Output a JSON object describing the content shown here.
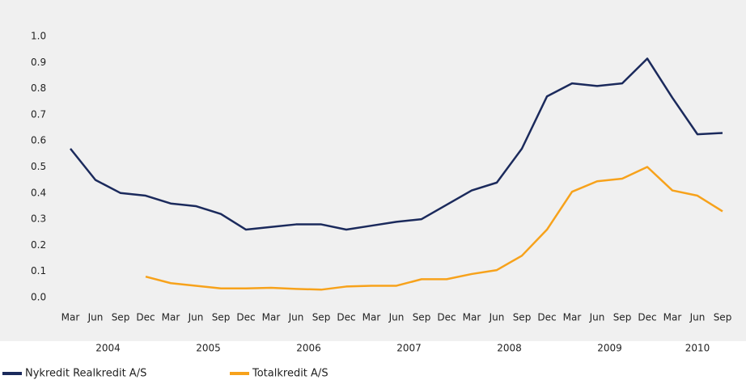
{
  "chart_data": {
    "type": "line",
    "categories": [
      "Mar",
      "Jun",
      "Sep",
      "Dec",
      "Mar",
      "Jun",
      "Sep",
      "Dec",
      "Mar",
      "Jun",
      "Sep",
      "Dec",
      "Mar",
      "Jun",
      "Sep",
      "Dec",
      "Mar",
      "Jun",
      "Sep",
      "Dec",
      "Mar",
      "Jun",
      "Sep",
      "Dec",
      "Mar",
      "Jun",
      "Sep"
    ],
    "years": [
      "2004",
      "2005",
      "2006",
      "2007",
      "2008",
      "2009",
      "2010"
    ],
    "series": [
      {
        "name": "Nykredit Realkredit A/S",
        "color": "#1b2a5c",
        "values": [
          0.57,
          0.45,
          0.4,
          0.39,
          0.36,
          0.35,
          0.32,
          0.26,
          0.27,
          0.28,
          0.28,
          0.26,
          0.275,
          0.29,
          0.3,
          0.355,
          0.41,
          0.44,
          0.57,
          0.77,
          0.82,
          0.81,
          0.82,
          0.915,
          0.765,
          0.625,
          0.63
        ]
      },
      {
        "name": "Totalkredit A/S",
        "color": "#f7a21b",
        "values": [
          null,
          null,
          null,
          0.08,
          0.055,
          0.045,
          0.035,
          0.035,
          0.037,
          0.033,
          0.03,
          0.042,
          0.045,
          0.045,
          0.07,
          0.07,
          0.09,
          0.105,
          0.16,
          0.26,
          0.405,
          0.445,
          0.455,
          0.5,
          0.41,
          0.39,
          0.33
        ]
      }
    ],
    "ylim": [
      0,
      1.0
    ],
    "yticks": [
      {
        "value": 0,
        "label": "0.0"
      },
      0.1,
      0.2,
      0.3,
      0.4,
      0.5,
      0.6,
      0.7,
      0.8,
      0.9,
      {
        "value": 1.0,
        "label": "1.0"
      }
    ],
    "grid": false,
    "legend": "bottom"
  }
}
